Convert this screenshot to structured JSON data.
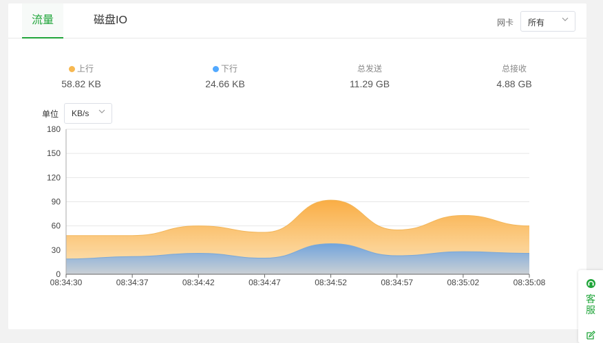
{
  "tabs": [
    {
      "label": "流量",
      "active": true
    },
    {
      "label": "磁盘IO",
      "active": false
    }
  ],
  "nic": {
    "label": "网卡",
    "value": "所有"
  },
  "stats": [
    {
      "label": "上行",
      "value": "58.82 KB",
      "dot_color": "#f7b851"
    },
    {
      "label": "下行",
      "value": "24.66 KB",
      "dot_color": "#52a9ff"
    },
    {
      "label": "总发送",
      "value": "11.29 GB"
    },
    {
      "label": "总接收",
      "value": "4.88 GB"
    }
  ],
  "unit": {
    "label": "单位",
    "value": "KB/s"
  },
  "side": {
    "support_label": "客服",
    "support_icon": "headset-icon",
    "feedback_icon": "edit-icon"
  },
  "colors": {
    "accent": "#20a53a",
    "up": "#f7b851",
    "down": "#52a9ff"
  },
  "chart_data": {
    "type": "area",
    "x": [
      "08:34:30",
      "08:34:37",
      "08:34:42",
      "08:34:47",
      "08:34:52",
      "08:34:57",
      "08:35:02",
      "08:35:08"
    ],
    "x_ticks": [
      "08:34:30",
      "08:34:37",
      "08:34:42",
      "08:34:47",
      "08:34:52",
      "08:34:57",
      "08:35:02",
      "08:35:08"
    ],
    "y_ticks": [
      0,
      30,
      60,
      90,
      120,
      150,
      180
    ],
    "ylim": [
      0,
      180
    ],
    "grid": true,
    "series": [
      {
        "name": "上行",
        "color": "#f7b851",
        "values": [
          48,
          48,
          60,
          52,
          92,
          55,
          73,
          60
        ]
      },
      {
        "name": "下行",
        "color": "#52a9ff",
        "values": [
          19,
          22,
          26,
          20,
          38,
          23,
          28,
          26
        ]
      }
    ]
  }
}
